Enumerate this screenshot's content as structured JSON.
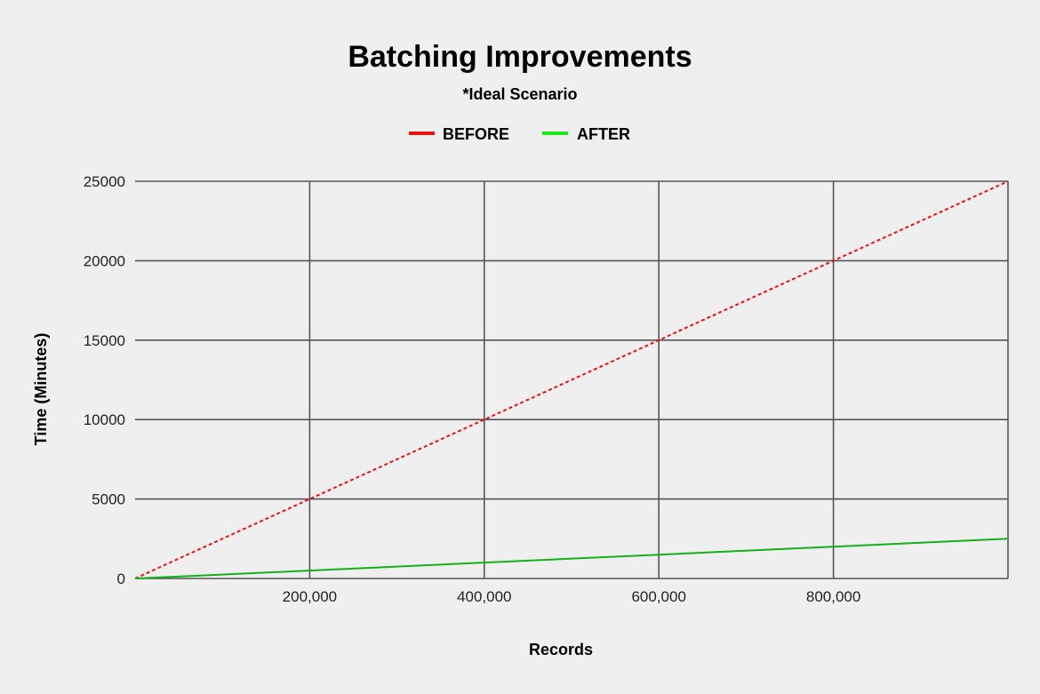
{
  "chart_data": {
    "type": "line",
    "title": "Batching Improvements",
    "subtitle": "*Ideal Scenario",
    "xlabel": "Records",
    "ylabel": "Time (Minutes)",
    "x": [
      0,
      200000,
      400000,
      600000,
      800000,
      1000000
    ],
    "x_tick_labels": [
      "200,000",
      "400,000",
      "600,000",
      "800,000"
    ],
    "y_tick_labels": [
      "0",
      "5000",
      "10000",
      "15000",
      "20000",
      "25000"
    ],
    "xlim": [
      0,
      1000000
    ],
    "ylim": [
      0,
      25000
    ],
    "grid": true,
    "legend_position": "top",
    "series": [
      {
        "name": "BEFORE",
        "color": "#e81313",
        "dashed": true,
        "values": [
          0,
          5000,
          10000,
          15000,
          20000,
          25000
        ]
      },
      {
        "name": "AFTER",
        "color": "#13b21a",
        "legend_color": "#1ee81a",
        "dashed": false,
        "values": [
          0,
          500,
          1000,
          1500,
          2000,
          2500
        ]
      }
    ]
  }
}
